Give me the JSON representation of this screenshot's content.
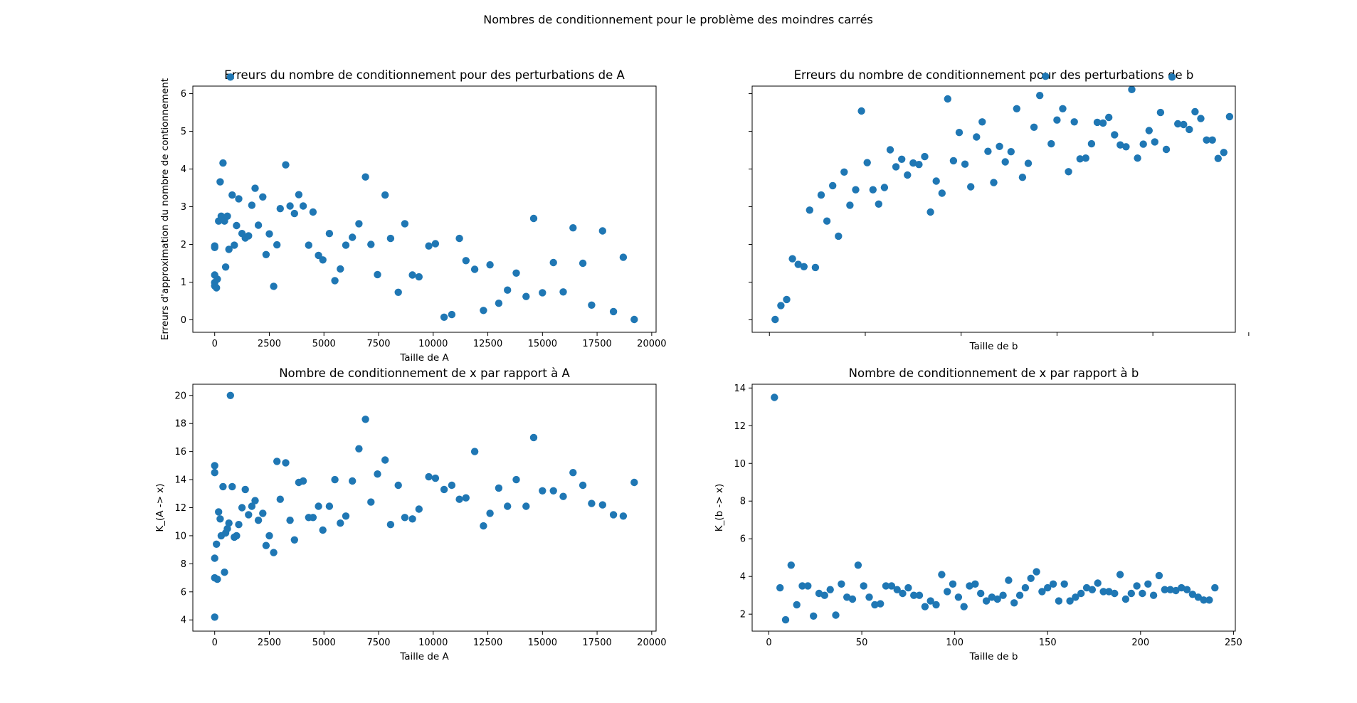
{
  "suptitle": "Nombres de conditionnement pour le problème des moindres carrés",
  "colors": {
    "marker": "#1f77b4",
    "axes": "#000000"
  },
  "chart_data": [
    {
      "type": "scatter",
      "title": "Erreurs du nombre de conditionnement pour des perturbations de A",
      "xlabel": "Taille de A",
      "ylabel": "Erreurs d'approximation du nombre de contionnement",
      "xlim": [
        -1000,
        20200
      ],
      "ylim": [
        -0.33,
        6.2
      ],
      "xticks": [
        0,
        2500,
        5000,
        7500,
        10000,
        12500,
        15000,
        17500,
        20000
      ],
      "xtick_labels": [
        "0",
        "2500",
        "5000",
        "7500",
        "10000",
        "12500",
        "15000",
        "17500",
        "20000"
      ],
      "yticks": [
        0,
        1,
        2,
        3,
        4,
        5,
        6
      ],
      "ytick_labels": [
        "0",
        "1",
        "2",
        "3",
        "4",
        "5",
        "6"
      ],
      "grid": false,
      "x": [
        0,
        0,
        0,
        0,
        0,
        80,
        120,
        180,
        250,
        300,
        380,
        450,
        500,
        580,
        650,
        720,
        800,
        900,
        1000,
        1100,
        1250,
        1400,
        1550,
        1700,
        1850,
        2000,
        2200,
        2350,
        2500,
        2700,
        2850,
        3000,
        3250,
        3450,
        3650,
        3850,
        4050,
        4300,
        4500,
        4750,
        4950,
        5250,
        5500,
        5750,
        6000,
        6300,
        6600,
        6900,
        7150,
        7450,
        7800,
        8050,
        8400,
        8700,
        9050,
        9350,
        9800,
        10100,
        10500,
        10850,
        11200,
        11500,
        11900,
        12300,
        12600,
        13000,
        13400,
        13800,
        14250,
        14600,
        15000,
        15500,
        15950,
        16400,
        16850,
        17250,
        17750,
        18250,
        18700,
        19200
      ],
      "y": [
        1.96,
        1.92,
        1.19,
        0.99,
        0.9,
        0.85,
        1.08,
        2.62,
        3.66,
        2.75,
        4.16,
        2.62,
        1.4,
        2.75,
        1.87,
        6.44,
        3.31,
        1.98,
        2.5,
        3.21,
        2.29,
        2.17,
        2.23,
        3.04,
        3.49,
        2.51,
        3.26,
        1.73,
        2.28,
        0.89,
        1.99,
        2.95,
        4.11,
        3.02,
        2.82,
        3.32,
        3.02,
        1.98,
        2.86,
        1.71,
        1.59,
        2.29,
        1.04,
        1.35,
        1.98,
        2.19,
        2.55,
        3.79,
        2.0,
        1.2,
        3.31,
        2.16,
        0.73,
        2.55,
        1.19,
        1.14,
        1.96,
        2.02,
        0.07,
        0.14,
        2.16,
        1.57,
        1.34,
        0.25,
        1.46,
        0.44,
        0.79,
        1.24,
        0.62,
        2.69,
        0.72,
        1.52,
        0.74,
        2.44,
        1.5,
        0.39,
        2.36,
        0.22,
        1.66,
        0.01
      ]
    },
    {
      "type": "scatter",
      "title": "Erreurs du nombre de conditionnement pour des perturbations de b",
      "xlabel": "Taille de b",
      "ylabel": "",
      "xlim": [
        -9,
        243
      ],
      "ylim": [
        -0.33,
        6.2
      ],
      "xticks": [
        0,
        50,
        100,
        150,
        200,
        250
      ],
      "xtick_labels": [],
      "yticks": [
        0,
        1,
        2,
        3,
        4,
        5,
        6
      ],
      "ytick_labels": [],
      "grid": false,
      "x": [
        3,
        6,
        9,
        12,
        15,
        18,
        21,
        24,
        27,
        30,
        33,
        36,
        39,
        42,
        45,
        48,
        51,
        54,
        57,
        60,
        63,
        66,
        69,
        72,
        75,
        78,
        81,
        84,
        87,
        90,
        93,
        96,
        99,
        102,
        105,
        108,
        111,
        114,
        117,
        120,
        123,
        126,
        129,
        132,
        135,
        138,
        141,
        144,
        147,
        150,
        153,
        156,
        159,
        162,
        165,
        168,
        171,
        174,
        177,
        180,
        183,
        186,
        189,
        192,
        195,
        198,
        201,
        204,
        207,
        210,
        213,
        216,
        219,
        222,
        225,
        228,
        231,
        234,
        237,
        240
      ],
      "y": [
        0.01,
        0.38,
        0.54,
        1.62,
        1.47,
        1.41,
        2.91,
        1.39,
        3.31,
        2.62,
        3.56,
        2.22,
        3.92,
        3.04,
        3.45,
        5.54,
        4.17,
        3.45,
        3.07,
        3.51,
        4.51,
        4.06,
        4.26,
        3.84,
        4.16,
        4.12,
        4.33,
        2.86,
        3.68,
        3.36,
        5.86,
        4.22,
        4.97,
        4.13,
        3.53,
        4.85,
        5.25,
        4.47,
        3.64,
        4.6,
        4.19,
        4.46,
        5.6,
        3.78,
        4.15,
        5.11,
        5.95,
        6.46,
        4.67,
        5.3,
        5.6,
        3.93,
        5.25,
        4.27,
        4.29,
        4.67,
        5.24,
        5.22,
        5.37,
        4.91,
        4.64,
        4.59,
        6.11,
        4.29,
        4.66,
        5.02,
        4.72,
        5.5,
        4.52,
        6.44,
        5.2,
        5.18,
        5.05,
        5.52,
        5.34,
        4.77,
        4.77,
        4.28,
        4.44,
        5.39
      ]
    },
    {
      "type": "scatter",
      "title": "Nombre de conditionnement de x par rapport à A",
      "xlabel": "Taille de A",
      "ylabel": "K_(A -> x)",
      "xlim": [
        -1000,
        20200
      ],
      "ylim": [
        3.2,
        20.8
      ],
      "xticks": [
        0,
        2500,
        5000,
        7500,
        10000,
        12500,
        15000,
        17500,
        20000
      ],
      "xtick_labels": [
        "0",
        "2500",
        "5000",
        "7500",
        "10000",
        "12500",
        "15000",
        "17500",
        "20000"
      ],
      "yticks": [
        4,
        6,
        8,
        10,
        12,
        14,
        16,
        18,
        20
      ],
      "ytick_labels": [
        "4",
        "6",
        "8",
        "10",
        "12",
        "14",
        "16",
        "18",
        "20"
      ],
      "grid": false,
      "x": [
        0,
        0,
        0,
        0,
        0,
        80,
        120,
        180,
        250,
        300,
        380,
        450,
        500,
        580,
        650,
        720,
        800,
        900,
        1000,
        1100,
        1250,
        1400,
        1550,
        1700,
        1850,
        2000,
        2200,
        2350,
        2500,
        2700,
        2850,
        3000,
        3250,
        3450,
        3650,
        3850,
        4050,
        4300,
        4500,
        4750,
        4950,
        5250,
        5500,
        5750,
        6000,
        6300,
        6600,
        6900,
        7150,
        7450,
        7800,
        8050,
        8400,
        8700,
        9050,
        9350,
        9800,
        10100,
        10500,
        10850,
        11200,
        11500,
        11900,
        12300,
        12600,
        13000,
        13400,
        13800,
        14250,
        14600,
        15000,
        15500,
        15950,
        16400,
        16850,
        17250,
        17750,
        18250,
        18700,
        19200
      ],
      "y": [
        14.5,
        15.0,
        8.4,
        7.0,
        4.2,
        9.4,
        6.9,
        11.7,
        11.2,
        10.0,
        13.5,
        7.4,
        10.2,
        10.5,
        10.9,
        20.0,
        13.5,
        9.9,
        10.0,
        10.8,
        12.0,
        13.3,
        11.5,
        12.1,
        12.5,
        11.1,
        11.6,
        9.3,
        10.0,
        8.8,
        15.3,
        12.6,
        15.2,
        11.1,
        9.7,
        13.8,
        13.9,
        11.3,
        11.3,
        12.1,
        10.4,
        12.1,
        14.0,
        10.9,
        11.4,
        13.9,
        16.2,
        18.3,
        12.4,
        14.4,
        15.4,
        10.8,
        13.6,
        11.3,
        11.2,
        11.9,
        14.2,
        14.1,
        13.3,
        13.6,
        12.6,
        12.7,
        16.0,
        10.7,
        11.6,
        13.4,
        12.1,
        14.0,
        12.1,
        17.0,
        13.2,
        13.2,
        12.8,
        14.5,
        13.6,
        12.3,
        12.2,
        11.5,
        11.4,
        13.8
      ]
    },
    {
      "type": "scatter",
      "title": "Nombre de conditionnement de x par rapport à b",
      "xlabel": "Taille de b",
      "ylabel": "K_(b -> x)",
      "xlim": [
        -9,
        251
      ],
      "ylim": [
        1.1,
        14.2
      ],
      "xticks": [
        0,
        50,
        100,
        150,
        200,
        250
      ],
      "xtick_labels": [
        "0",
        "50",
        "100",
        "150",
        "200",
        "250"
      ],
      "yticks": [
        2,
        4,
        6,
        8,
        10,
        12,
        14
      ],
      "ytick_labels": [
        "2",
        "4",
        "6",
        "8",
        "10",
        "12",
        "14"
      ],
      "grid": false,
      "x": [
        3,
        6,
        9,
        12,
        15,
        18,
        21,
        24,
        27,
        30,
        33,
        36,
        39,
        42,
        45,
        48,
        51,
        54,
        57,
        60,
        63,
        66,
        69,
        72,
        75,
        78,
        81,
        84,
        87,
        90,
        93,
        96,
        99,
        102,
        105,
        108,
        111,
        114,
        117,
        120,
        123,
        126,
        129,
        132,
        135,
        138,
        141,
        144,
        147,
        150,
        153,
        156,
        159,
        162,
        165,
        168,
        171,
        174,
        177,
        180,
        183,
        186,
        189,
        192,
        195,
        198,
        201,
        204,
        207,
        210,
        213,
        216,
        219,
        222,
        225,
        228,
        231,
        234,
        237,
        240
      ],
      "y": [
        13.5,
        3.4,
        1.7,
        4.6,
        2.5,
        3.5,
        3.5,
        1.9,
        3.1,
        3.0,
        3.3,
        1.95,
        3.6,
        2.9,
        2.8,
        4.6,
        3.5,
        2.9,
        2.5,
        2.55,
        3.5,
        3.5,
        3.3,
        3.1,
        3.4,
        3.0,
        3.0,
        2.4,
        2.7,
        2.5,
        4.1,
        3.2,
        3.6,
        2.9,
        2.4,
        3.5,
        3.6,
        3.1,
        2.7,
        2.9,
        2.8,
        3.0,
        3.8,
        2.6,
        3.0,
        3.4,
        3.9,
        4.25,
        3.2,
        3.4,
        3.6,
        2.7,
        3.6,
        2.7,
        2.9,
        3.1,
        3.4,
        3.3,
        3.65,
        3.2,
        3.2,
        3.1,
        4.1,
        2.8,
        3.1,
        3.5,
        3.1,
        3.6,
        3.0,
        4.05,
        3.3,
        3.3,
        3.25,
        3.4,
        3.3,
        3.05,
        2.9,
        2.75,
        2.75,
        3.4
      ]
    }
  ]
}
